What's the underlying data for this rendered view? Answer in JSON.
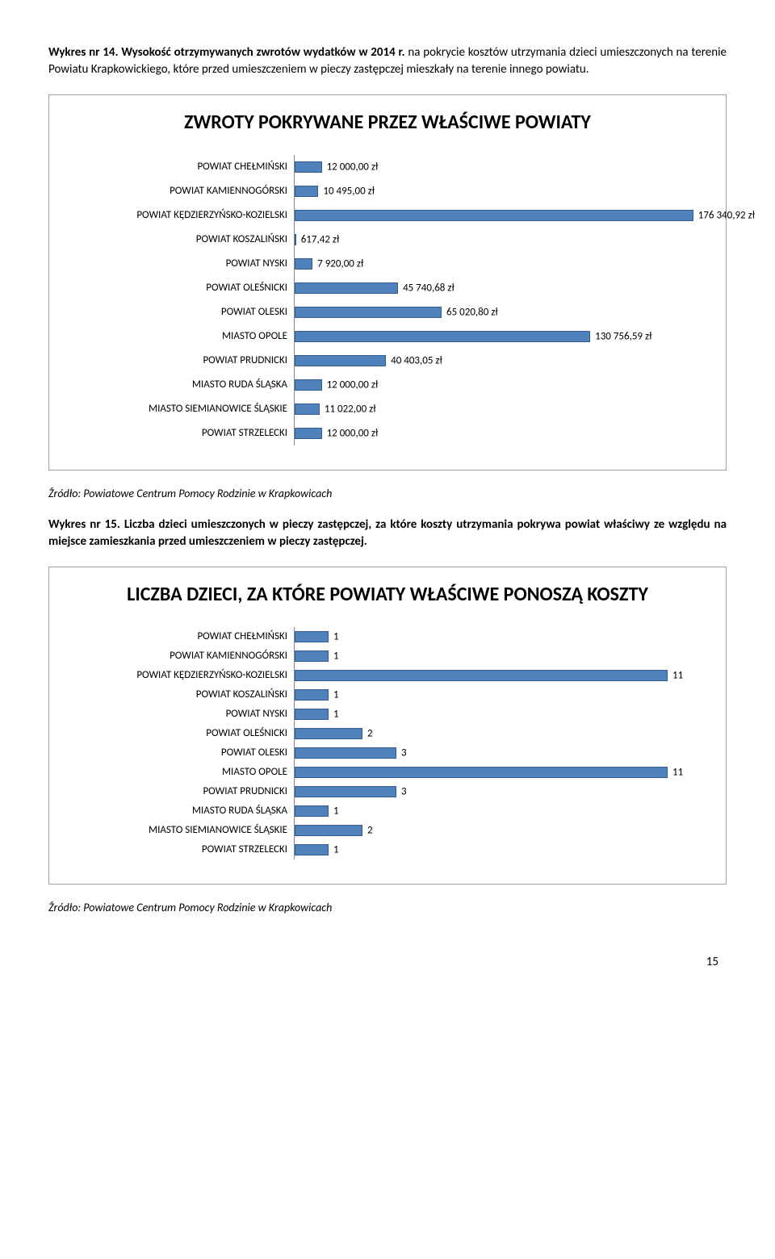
{
  "intro1": {
    "bold": "Wykres nr 14. Wysokość otrzymywanych zwrotów wydatków w 2014 r.",
    "rest": " na pokrycie kosztów utrzymania dzieci umieszczonych na terenie Powiatu Krapkowickiego, które przed umieszczeniem w pieczy zastępczej mieszkały na terenie innego powiatu."
  },
  "chart1": {
    "title": "ZWROTY POKRYWANE PRZEZ WŁAŚCIWE POWIATY",
    "title_fontsize": 24,
    "max_value": 180000,
    "bar_color": "#4f81bd",
    "bar_border": "#385d8a",
    "cat_fontsize": 13,
    "val_fontsize": 13,
    "rows": [
      {
        "cat": "POWIAT CHEŁMIŃSKI",
        "val": 12000.0,
        "label": "12 000,00 zł"
      },
      {
        "cat": "POWIAT KAMIENNOGÓRSKI",
        "val": 10495.0,
        "label": "10 495,00 zł"
      },
      {
        "cat": "POWIAT KĘDZIERZYŃSKO-KOZIELSKI",
        "val": 176340.92,
        "label": "176 340,92 zł"
      },
      {
        "cat": "POWIAT KOSZALIŃSKI",
        "val": 617.42,
        "label": "617,42 zł"
      },
      {
        "cat": "POWIAT NYSKI",
        "val": 7920.0,
        "label": "7 920,00 zł"
      },
      {
        "cat": "POWIAT OLEŚNICKI",
        "val": 45740.68,
        "label": "45 740,68 zł"
      },
      {
        "cat": "POWIAT OLESKI",
        "val": 65020.8,
        "label": "65 020,80 zł"
      },
      {
        "cat": "MIASTO OPOLE",
        "val": 130756.59,
        "label": "130 756,59 zł"
      },
      {
        "cat": "POWIAT PRUDNICKI",
        "val": 40403.05,
        "label": "40 403,05 zł"
      },
      {
        "cat": "MIASTO RUDA ŚLĄSKA",
        "val": 12000.0,
        "label": "12 000,00 zł"
      },
      {
        "cat": "MIASTO SIEMIANOWICE ŚLĄSKIE",
        "val": 11022.0,
        "label": "11 022,00 zł"
      },
      {
        "cat": "POWIAT STRZELECKI",
        "val": 12000.0,
        "label": "12 000,00 zł"
      }
    ]
  },
  "source1": "Źródło: Powiatowe Centrum Pomocy Rodzinie w Krapkowicach",
  "intro2": {
    "bold": "Wykres nr 15. Liczba dzieci umieszczonych w pieczy zastępczej, za które koszty utrzymania pokrywa powiat właściwy ze względu na miejsce zamieszkania przed umieszczeniem w pieczy zastępczej."
  },
  "chart2": {
    "title": "LICZBA DZIECI, ZA KTÓRE POWIATY WŁAŚCIWE PONOSZĄ KOSZTY",
    "title_fontsize": 24,
    "max_value": 12,
    "bar_color": "#4f81bd",
    "bar_border": "#385d8a",
    "cat_fontsize": 13,
    "val_fontsize": 13,
    "rows": [
      {
        "cat": "POWIAT CHEŁMIŃSKI",
        "val": 1,
        "label": "1"
      },
      {
        "cat": "POWIAT KAMIENNOGÓRSKI",
        "val": 1,
        "label": "1"
      },
      {
        "cat": "POWIAT KĘDZIERZYŃSKO-KOZIELSKI",
        "val": 11,
        "label": "11"
      },
      {
        "cat": "POWIAT KOSZALIŃSKI",
        "val": 1,
        "label": "1"
      },
      {
        "cat": "POWIAT NYSKI",
        "val": 1,
        "label": "1"
      },
      {
        "cat": "POWIAT OLEŚNICKI",
        "val": 2,
        "label": "2"
      },
      {
        "cat": "POWIAT OLESKI",
        "val": 3,
        "label": "3"
      },
      {
        "cat": "MIASTO OPOLE",
        "val": 11,
        "label": "11"
      },
      {
        "cat": "POWIAT PRUDNICKI",
        "val": 3,
        "label": "3"
      },
      {
        "cat": "MIASTO RUDA ŚLĄSKA",
        "val": 1,
        "label": "1"
      },
      {
        "cat": "MIASTO SIEMIANOWICE ŚLĄSKIE",
        "val": 2,
        "label": "2"
      },
      {
        "cat": "POWIAT STRZELECKI",
        "val": 1,
        "label": "1"
      }
    ]
  },
  "source2": "Źródło: Powiatowe Centrum Pomocy Rodzinie w Krapkowicach",
  "page_number": "15"
}
